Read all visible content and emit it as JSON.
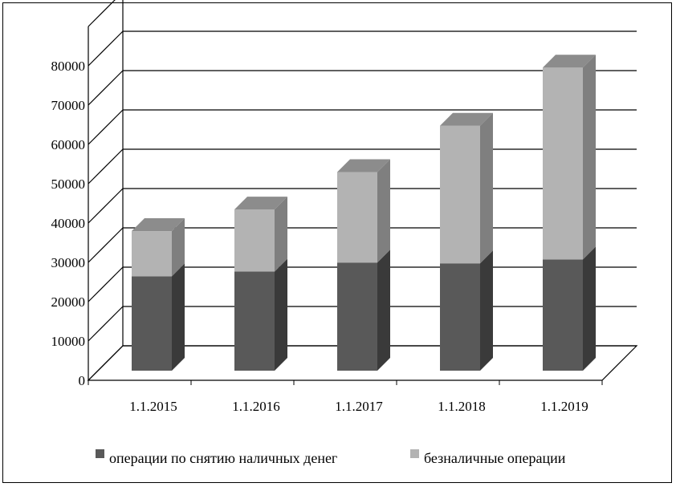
{
  "chart_data": {
    "type": "bar",
    "stacked": true,
    "three_d": true,
    "categories": [
      "1.1.2015",
      "1.1.2016",
      "1.1.2017",
      "1.1.2018",
      "1.1.2019"
    ],
    "series": [
      {
        "name": "операции по снятию наличных денег",
        "values": [
          24000,
          25200,
          27500,
          27300,
          28300
        ],
        "color": "#595959"
      },
      {
        "name": "безналичные операции",
        "values": [
          11500,
          15800,
          23000,
          35000,
          48800
        ],
        "color": "#b3b3b3"
      }
    ],
    "y_ticks": [
      "0",
      "10000",
      "20000",
      "30000",
      "40000",
      "50000",
      "60000",
      "70000",
      "80000"
    ],
    "ylim": [
      0,
      80000
    ],
    "grid": true,
    "legend_position": "bottom"
  }
}
